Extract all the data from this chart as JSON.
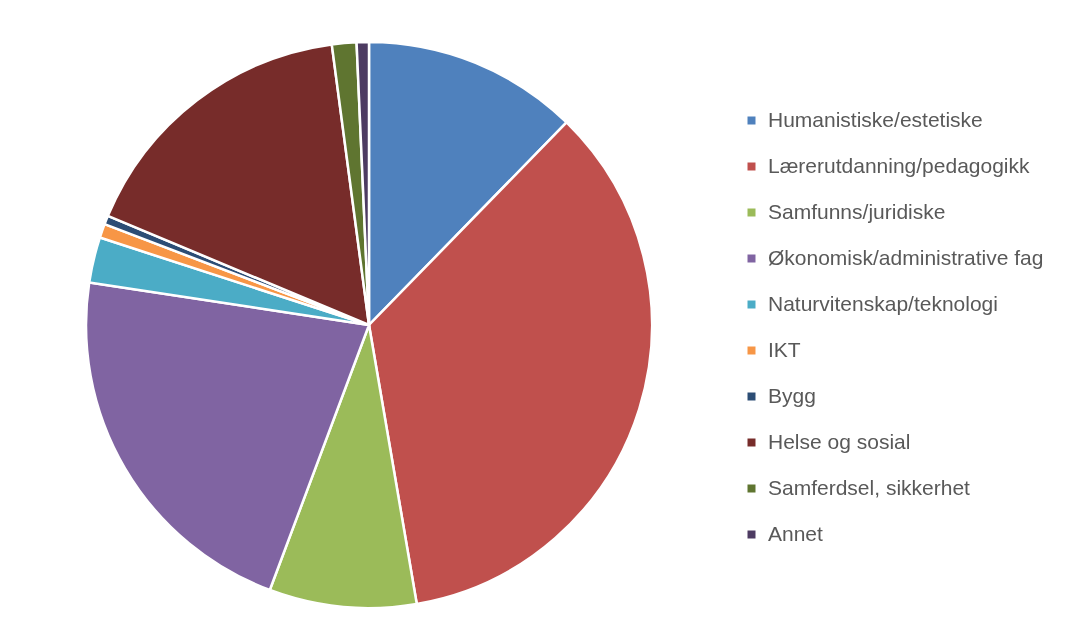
{
  "chart_data": {
    "type": "pie",
    "categories": [
      "Humanistiske/estetiske",
      "Lærerutdanning/pedagogikk",
      "Samfunns/juridiske",
      "Økonomisk/administrative fag",
      "Naturvitenskap/teknologi",
      "IKT",
      "Bygg",
      "Helse og sosial",
      "Samferdsel, sikkerhet",
      "Annet"
    ],
    "values": [
      12.3,
      35.0,
      8.4,
      21.7,
      2.6,
      0.8,
      0.5,
      16.6,
      1.4,
      0.7
    ],
    "colors": [
      "#4f81bd",
      "#c0504d",
      "#9bbb59",
      "#8064a2",
      "#4bacc6",
      "#f79646",
      "#2c4d75",
      "#772c2a",
      "#5f7530",
      "#4d3b62"
    ],
    "legend": "right"
  }
}
